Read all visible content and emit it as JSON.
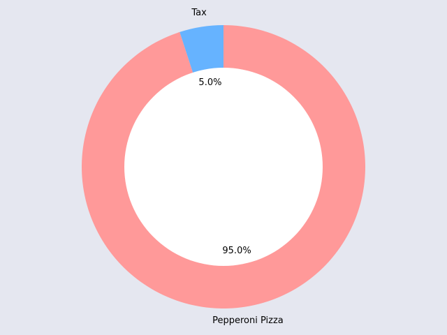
{
  "chart_data": {
    "type": "pie",
    "categories": [
      "Pepperoni Pizza",
      "Tax"
    ],
    "values": [
      95.0,
      5.0
    ],
    "percent_labels": [
      "95.0%",
      "5.0%"
    ],
    "colors": [
      "#ff9999",
      "#66b3ff"
    ],
    "donut": true,
    "start_angle_deg": 90,
    "direction": "clockwise",
    "background_color": "#e5e7f0",
    "hole_color": "#ffffff",
    "legend": "none",
    "grid": false
  }
}
